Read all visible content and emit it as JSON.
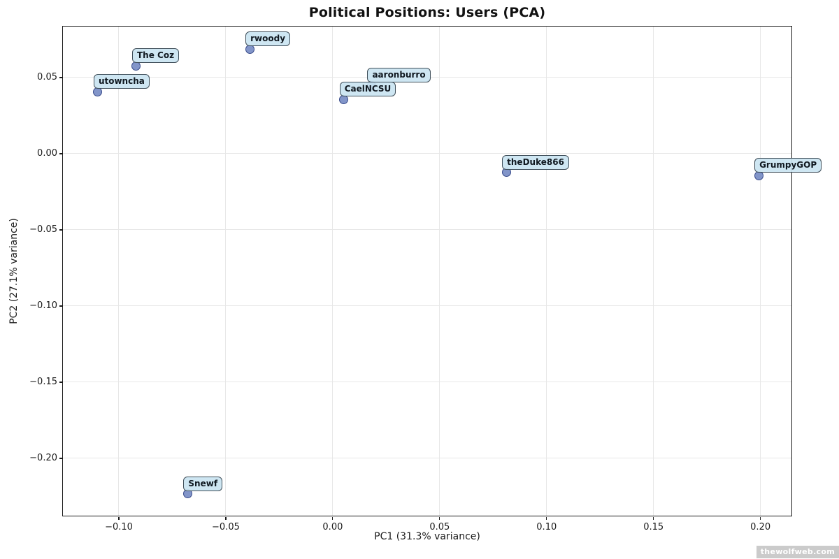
{
  "figure": {
    "title": "Political Positions: Users (PCA)",
    "watermark": "thewolfweb.com"
  },
  "chart_data": {
    "type": "scatter",
    "title": "Political Positions: Users (PCA)",
    "xlabel": "PC1 (31.3% variance)",
    "ylabel": "PC2 (27.1% variance)",
    "xlim": [
      -0.126,
      0.2145
    ],
    "ylim": [
      -0.2376,
      0.0835
    ],
    "grid": true,
    "legend": "none",
    "x_ticks": [
      -0.1,
      -0.05,
      0.0,
      0.05,
      0.1,
      0.15,
      0.2
    ],
    "x_tick_labels": [
      "−0.10",
      "−0.05",
      "0.00",
      "0.05",
      "0.10",
      "0.15",
      "0.20"
    ],
    "y_ticks": [
      0.05,
      0.0,
      -0.05,
      -0.1,
      -0.15,
      -0.2
    ],
    "y_tick_labels": [
      "0.05",
      "0.00",
      "−0.05",
      "−0.10",
      "−0.15",
      "−0.20"
    ],
    "points": [
      {
        "label": "rwoody",
        "x": -0.039,
        "y": 0.069
      },
      {
        "label": "The Coz",
        "x": -0.092,
        "y": 0.058
      },
      {
        "label": "utowncha",
        "x": -0.11,
        "y": 0.041
      },
      {
        "label": "aaronburro",
        "x": 0.018,
        "y": 0.045
      },
      {
        "label": "CaelNCSU",
        "x": 0.005,
        "y": 0.036
      },
      {
        "label": "theDuke866",
        "x": 0.081,
        "y": -0.012
      },
      {
        "label": "GrumpyGOP",
        "x": 0.199,
        "y": -0.014
      },
      {
        "label": "Snewf",
        "x": -0.068,
        "y": -0.223
      }
    ],
    "colors": {
      "marker_fill": "rgba(108,130,192,0.85)",
      "marker_edge": "rgba(38,56,122,0.8)",
      "label_box_fill": "rgba(202,228,241,0.92)",
      "label_box_edge": "#3f4e59",
      "grid": "#e7e7e7",
      "spine": "#1a1a1a"
    }
  }
}
